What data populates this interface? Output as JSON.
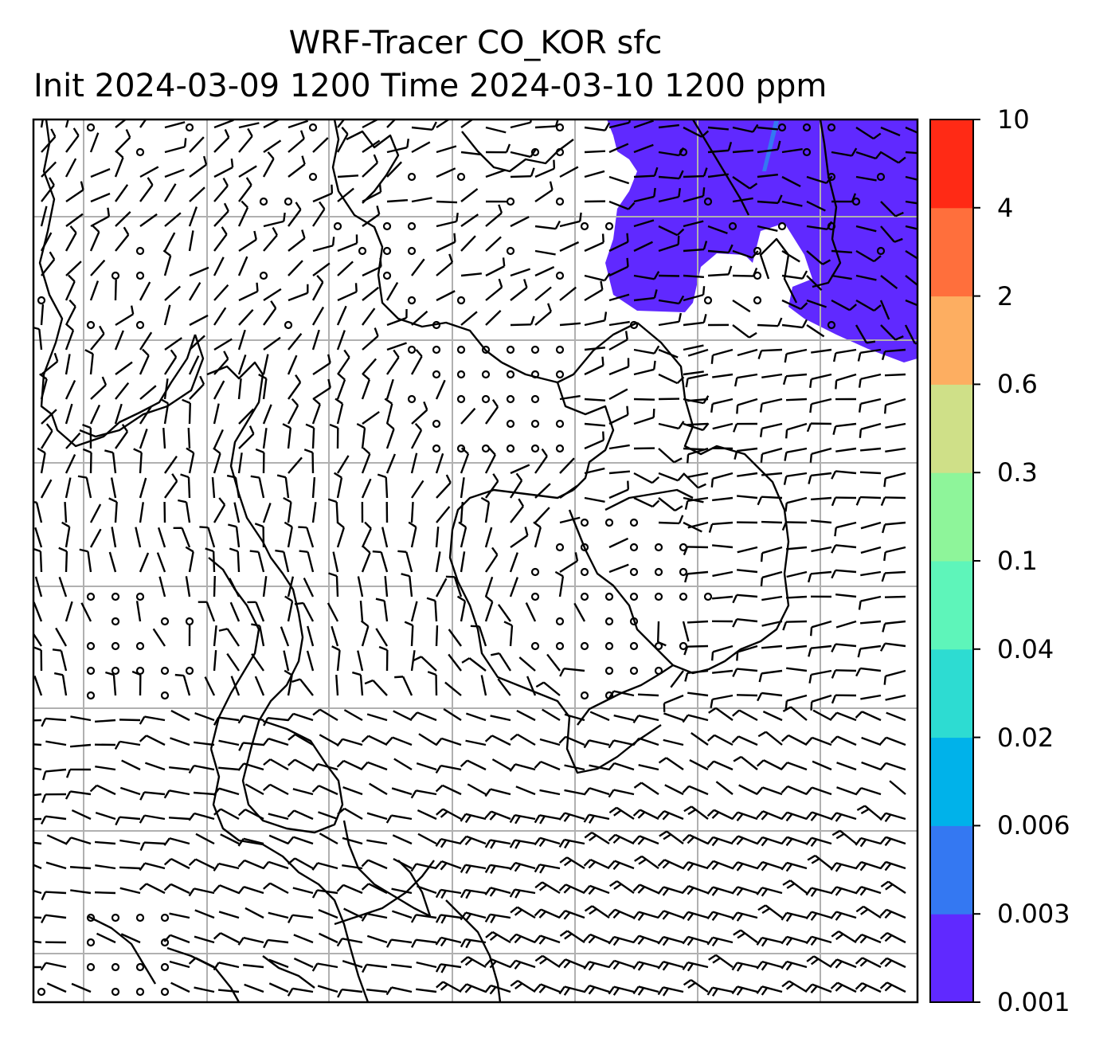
{
  "title": {
    "line1": "WRF-Tracer CO_KOR sfc",
    "line2": "Init 2024-03-09 1200 Time 2024-03-10 1200 ppm"
  },
  "map": {
    "field": "CO_KOR tracer, surface",
    "gridlines": true,
    "barb_color": "#000000",
    "coastline_color": "#000000",
    "grid_color": "#b0b0b0",
    "plume": {
      "color": "#6029ff",
      "level_range": "0.001-0.003",
      "location": "top-right"
    }
  },
  "colorbar": {
    "levels": [
      "0.001",
      "0.003",
      "0.006",
      "0.02",
      "0.04",
      "0.1",
      "0.3",
      "0.6",
      "2",
      "4",
      "10"
    ],
    "colors": [
      "#6029ff",
      "#3478f2",
      "#00b2ea",
      "#2ddcd2",
      "#5ef5ba",
      "#8ef59a",
      "#8ef59a",
      "#cfe088",
      "#fdae61",
      "#ff6f3c",
      "#ff2a15"
    ],
    "label_values": [
      "10",
      "4",
      "2",
      "0.6",
      "0.3",
      "0.1",
      "0.04",
      "0.02",
      "0.006",
      "0.003",
      "0.001"
    ]
  }
}
